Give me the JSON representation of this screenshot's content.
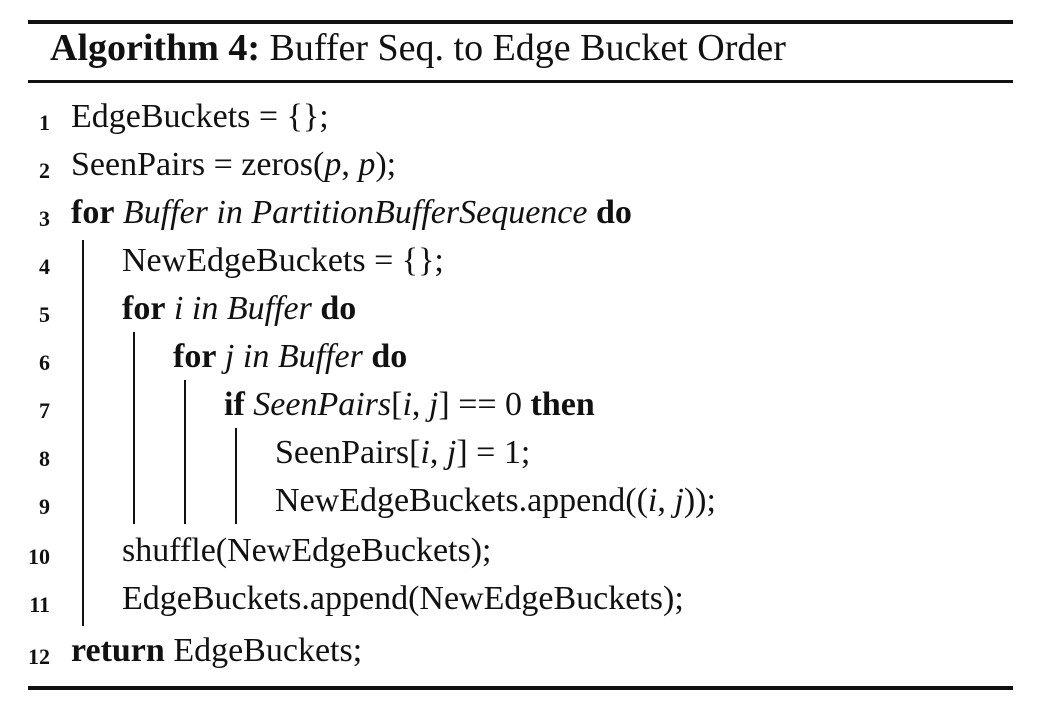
{
  "algorithm": {
    "label": "Algorithm 4:",
    "title": "Buffer Seq. to Edge Bucket Order"
  },
  "lines": [
    {
      "num": "1",
      "parts": [
        {
          "t": "EdgeBuckets = {};",
          "s": "plain"
        }
      ]
    },
    {
      "num": "2",
      "parts": [
        {
          "t": "SeenPairs = zeros(",
          "s": "plain"
        },
        {
          "t": "p",
          "s": "italic"
        },
        {
          "t": ", ",
          "s": "plain"
        },
        {
          "t": "p",
          "s": "italic"
        },
        {
          "t": ");",
          "s": "plain"
        }
      ]
    },
    {
      "num": "3",
      "parts": [
        {
          "t": "for",
          "s": "bold"
        },
        {
          "t": " Buffer in PartitionBufferSequence ",
          "s": "italic"
        },
        {
          "t": "do",
          "s": "bold"
        }
      ]
    },
    {
      "num": "4",
      "parts": [
        {
          "t": "NewEdgeBuckets = {};",
          "s": "plain"
        }
      ]
    },
    {
      "num": "5",
      "parts": [
        {
          "t": "for",
          "s": "bold"
        },
        {
          "t": " i in Buffer ",
          "s": "italic"
        },
        {
          "t": "do",
          "s": "bold"
        }
      ]
    },
    {
      "num": "6",
      "parts": [
        {
          "t": "for",
          "s": "bold"
        },
        {
          "t": " j in Buffer ",
          "s": "italic"
        },
        {
          "t": "do",
          "s": "bold"
        }
      ]
    },
    {
      "num": "7",
      "parts": [
        {
          "t": "if",
          "s": "bold"
        },
        {
          "t": " SeenPairs",
          "s": "italic"
        },
        {
          "t": "[",
          "s": "plain"
        },
        {
          "t": "i",
          "s": "italic"
        },
        {
          "t": ", ",
          "s": "plain"
        },
        {
          "t": "j",
          "s": "italic"
        },
        {
          "t": "] == 0 ",
          "s": "plain"
        },
        {
          "t": "then",
          "s": "bold"
        }
      ]
    },
    {
      "num": "8",
      "parts": [
        {
          "t": "SeenPairs[",
          "s": "plain"
        },
        {
          "t": "i",
          "s": "italic"
        },
        {
          "t": ", ",
          "s": "plain"
        },
        {
          "t": "j",
          "s": "italic"
        },
        {
          "t": "] = 1;",
          "s": "plain"
        }
      ]
    },
    {
      "num": "9",
      "parts": [
        {
          "t": "NewEdgeBuckets.append((",
          "s": "plain"
        },
        {
          "t": "i",
          "s": "italic"
        },
        {
          "t": ", ",
          "s": "plain"
        },
        {
          "t": "j",
          "s": "italic"
        },
        {
          "t": "));",
          "s": "plain"
        }
      ]
    },
    {
      "num": "10",
      "parts": [
        {
          "t": "shuffle(NewEdgeBuckets);",
          "s": "plain"
        }
      ]
    },
    {
      "num": "11",
      "parts": [
        {
          "t": "EdgeBuckets.append(NewEdgeBuckets);",
          "s": "plain"
        }
      ]
    },
    {
      "num": "12",
      "parts": [
        {
          "t": "return",
          "s": "bold"
        },
        {
          "t": " EdgeBuckets;",
          "s": "plain"
        }
      ]
    }
  ]
}
